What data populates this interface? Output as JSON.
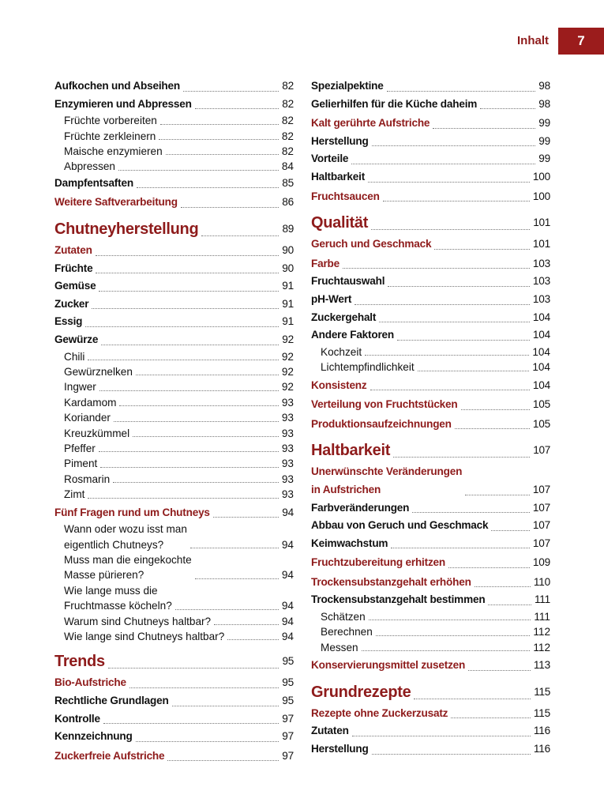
{
  "header": {
    "title": "Inhalt",
    "page_number": "7",
    "accent": "#9b1c1c"
  },
  "columns": [
    {
      "entries": [
        {
          "t": "Aufkochen und Abseihen",
          "p": "82",
          "k": "b"
        },
        {
          "t": "Enzymieren und Abpressen",
          "p": "82",
          "k": "b"
        },
        {
          "t": "Früchte vorbereiten",
          "p": "82",
          "k": "s"
        },
        {
          "t": "Früchte zerkleinern",
          "p": "82",
          "k": "s"
        },
        {
          "t": "Maische enzymieren",
          "p": "82",
          "k": "s"
        },
        {
          "t": "Abpressen",
          "p": "84",
          "k": "s"
        },
        {
          "t": "Dampfentsaften",
          "p": "85",
          "k": "b"
        },
        {
          "t": "Weitere Saftverarbeitung",
          "p": "86",
          "k": "h2"
        },
        {
          "t": "Chutneyherstellung",
          "p": "89",
          "k": "h1"
        },
        {
          "t": "Zutaten",
          "p": "90",
          "k": "h2"
        },
        {
          "t": "Früchte",
          "p": "90",
          "k": "b"
        },
        {
          "t": "Gemüse",
          "p": "91",
          "k": "b"
        },
        {
          "t": "Zucker",
          "p": "91",
          "k": "b"
        },
        {
          "t": "Essig",
          "p": "91",
          "k": "b"
        },
        {
          "t": "Gewürze",
          "p": "92",
          "k": "b"
        },
        {
          "t": "Chili",
          "p": "92",
          "k": "s"
        },
        {
          "t": "Gewürznelken",
          "p": "92",
          "k": "s"
        },
        {
          "t": "Ingwer",
          "p": "92",
          "k": "s"
        },
        {
          "t": "Kardamom",
          "p": "93",
          "k": "s"
        },
        {
          "t": "Koriander",
          "p": "93",
          "k": "s"
        },
        {
          "t": "Kreuzkümmel",
          "p": "93",
          "k": "s"
        },
        {
          "t": "Pfeffer",
          "p": "93",
          "k": "s"
        },
        {
          "t": "Piment",
          "p": "93",
          "k": "s"
        },
        {
          "t": "Rosmarin",
          "p": "93",
          "k": "s"
        },
        {
          "t": "Zimt",
          "p": "93",
          "k": "s"
        },
        {
          "t": "Fünf Fragen rund um Chutneys",
          "p": "94",
          "k": "h2"
        },
        {
          "t": "Wann oder wozu isst man\neigentlich Chutneys?",
          "p": "94",
          "k": "s"
        },
        {
          "t": "Muss man die eingekochte\nMasse pürieren?",
          "p": "94",
          "k": "s"
        },
        {
          "t": "Wie lange muss die\nFruchtmasse köcheln?",
          "p": "94",
          "k": "s"
        },
        {
          "t": "Warum sind Chutneys haltbar?",
          "p": "94",
          "k": "s"
        },
        {
          "t": "Wie lange sind Chutneys haltbar?",
          "p": "94",
          "k": "s"
        },
        {
          "t": "Trends",
          "p": "95",
          "k": "h1"
        },
        {
          "t": "Bio-Aufstriche",
          "p": "95",
          "k": "h2"
        },
        {
          "t": "Rechtliche Grundlagen",
          "p": "95",
          "k": "b"
        },
        {
          "t": "Kontrolle",
          "p": "97",
          "k": "b"
        },
        {
          "t": "Kennzeichnung",
          "p": "97",
          "k": "b"
        },
        {
          "t": "Zuckerfreie Aufstriche",
          "p": "97",
          "k": "h2"
        }
      ]
    },
    {
      "entries": [
        {
          "t": "Spezialpektine",
          "p": "98",
          "k": "b"
        },
        {
          "t": "Gelierhilfen für die Küche daheim",
          "p": "98",
          "k": "b"
        },
        {
          "t": "Kalt gerührte Aufstriche",
          "p": "99",
          "k": "h2"
        },
        {
          "t": "Herstellung",
          "p": "99",
          "k": "b"
        },
        {
          "t": "Vorteile",
          "p": "99",
          "k": "b"
        },
        {
          "t": "Haltbarkeit",
          "p": "100",
          "k": "b"
        },
        {
          "t": "Fruchtsaucen",
          "p": "100",
          "k": "h2"
        },
        {
          "t": "Qualität",
          "p": "101",
          "k": "h1"
        },
        {
          "t": "Geruch und Geschmack",
          "p": "101",
          "k": "h2"
        },
        {
          "t": "Farbe",
          "p": "103",
          "k": "h2"
        },
        {
          "t": "Fruchtauswahl",
          "p": "103",
          "k": "b"
        },
        {
          "t": "pH-Wert",
          "p": "103",
          "k": "b"
        },
        {
          "t": "Zuckergehalt",
          "p": "104",
          "k": "b"
        },
        {
          "t": "Andere Faktoren",
          "p": "104",
          "k": "b"
        },
        {
          "t": "Kochzeit",
          "p": "104",
          "k": "s"
        },
        {
          "t": "Lichtempfindlichkeit",
          "p": "104",
          "k": "s"
        },
        {
          "t": "Konsistenz",
          "p": "104",
          "k": "h2"
        },
        {
          "t": "Verteilung von Fruchtstücken",
          "p": "105",
          "k": "h2"
        },
        {
          "t": "Produktionsaufzeichnungen",
          "p": "105",
          "k": "h2"
        },
        {
          "t": "Haltbarkeit",
          "p": "107",
          "k": "h1"
        },
        {
          "t": "Unerwünschte Veränderungen\nin Aufstrichen",
          "p": "107",
          "k": "h2"
        },
        {
          "t": "Farbveränderungen",
          "p": "107",
          "k": "b"
        },
        {
          "t": "Abbau von Geruch und Geschmack",
          "p": "107",
          "k": "b"
        },
        {
          "t": "Keimwachstum",
          "p": "107",
          "k": "b"
        },
        {
          "t": "Fruchtzubereitung erhitzen",
          "p": "109",
          "k": "h2"
        },
        {
          "t": "Trockensubstanzgehalt erhöhen",
          "p": "110",
          "k": "h2"
        },
        {
          "t": "Trockensubstanzgehalt bestimmen",
          "p": "111",
          "k": "b"
        },
        {
          "t": "Schätzen",
          "p": "111",
          "k": "s"
        },
        {
          "t": "Berechnen",
          "p": "112",
          "k": "s"
        },
        {
          "t": "Messen",
          "p": "112",
          "k": "s"
        },
        {
          "t": "Konservierungsmittel zusetzen",
          "p": "113",
          "k": "h2"
        },
        {
          "t": "Grundrezepte",
          "p": "115",
          "k": "h1"
        },
        {
          "t": "Rezepte ohne Zuckerzusatz",
          "p": "115",
          "k": "h2"
        },
        {
          "t": "Zutaten",
          "p": "116",
          "k": "b"
        },
        {
          "t": "Herstellung",
          "p": "116",
          "k": "b"
        }
      ]
    }
  ]
}
